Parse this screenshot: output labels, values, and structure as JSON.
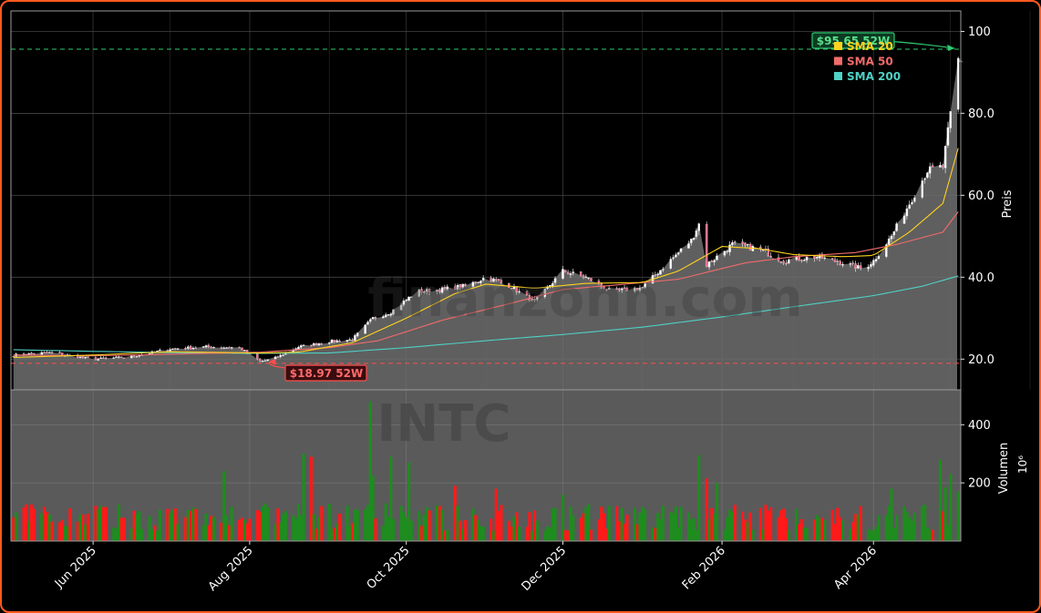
{
  "chart_data": {
    "type": "candlestick",
    "watermark_text": "INTC",
    "watermark_site": "finanzonn.com",
    "x_ticks": [
      "Jun 2025",
      "Aug 2025",
      "Oct 2025",
      "Dec 2025",
      "Feb 2026",
      "Apr 2026"
    ],
    "x_range": [
      "2025-04-30",
      "2026-05-05"
    ],
    "price_axis": {
      "label": "Preis",
      "ylim": [
        12.5,
        105.0
      ],
      "ticks": [
        20,
        40,
        60,
        80,
        100
      ],
      "tick_labels": [
        "20.0",
        "40.0",
        "60.0",
        "80.0",
        "100"
      ]
    },
    "volume_axis": {
      "label": "Volumen",
      "unit": "10⁶",
      "ylim": [
        0,
        520
      ],
      "ticks": [
        200,
        400
      ],
      "tick_labels": [
        "200",
        "400"
      ]
    },
    "grid": true,
    "legend": {
      "position": "top-right",
      "entries": [
        {
          "name": "SMA 20",
          "color": "#ffd21f"
        },
        {
          "name": "SMA 50",
          "color": "#f26b6b"
        },
        {
          "name": "SMA 200",
          "color": "#4fd1c5"
        }
      ]
    },
    "annotations": {
      "high": {
        "label": "$95.65 52W",
        "value": 95.65,
        "color": "#2ecc71"
      },
      "low": {
        "label": "$18.97 52W",
        "value": 18.97,
        "color": "#ff4d4d"
      }
    },
    "price_keypoints": [
      [
        "2025-05-01",
        21.0
      ],
      [
        "2025-05-15",
        21.6
      ],
      [
        "2025-06-01",
        20.0
      ],
      [
        "2025-06-15",
        20.5
      ],
      [
        "2025-07-01",
        22.5
      ],
      [
        "2025-07-15",
        23.0
      ],
      [
        "2025-07-28",
        22.8
      ],
      [
        "2025-08-05",
        19.5
      ],
      [
        "2025-08-10",
        20.0
      ],
      [
        "2025-08-20",
        23.0
      ],
      [
        "2025-09-01",
        24.3
      ],
      [
        "2025-09-10",
        24.8
      ],
      [
        "2025-09-18",
        30.0
      ],
      [
        "2025-09-25",
        31.5
      ],
      [
        "2025-10-05",
        36.5
      ],
      [
        "2025-10-15",
        37.0
      ],
      [
        "2025-10-25",
        38.0
      ],
      [
        "2025-11-01",
        40.0
      ],
      [
        "2025-11-10",
        38.0
      ],
      [
        "2025-11-20",
        34.0
      ],
      [
        "2025-12-01",
        41.5
      ],
      [
        "2025-12-10",
        40.0
      ],
      [
        "2025-12-20",
        36.5
      ],
      [
        "2026-01-01",
        37.5
      ],
      [
        "2026-01-10",
        43.0
      ],
      [
        "2026-01-20",
        49.0
      ],
      [
        "2026-01-23",
        53.0
      ],
      [
        "2026-01-26",
        43.0
      ],
      [
        "2026-02-05",
        48.0
      ],
      [
        "2026-02-15",
        47.0
      ],
      [
        "2026-02-25",
        44.0
      ],
      [
        "2026-03-10",
        45.0
      ],
      [
        "2026-03-20",
        43.5
      ],
      [
        "2026-03-28",
        42.0
      ],
      [
        "2026-04-01",
        44.0
      ],
      [
        "2026-04-08",
        50.0
      ],
      [
        "2026-04-15",
        58.0
      ],
      [
        "2026-04-22",
        66.0
      ],
      [
        "2026-04-28",
        67.0
      ],
      [
        "2026-05-02",
        84.0
      ],
      [
        "2026-05-04",
        93.0
      ]
    ],
    "sma20_keypoints": [
      [
        "2025-05-01",
        20.4
      ],
      [
        "2025-06-01",
        21.0
      ],
      [
        "2025-07-01",
        21.8
      ],
      [
        "2025-08-05",
        21.5
      ],
      [
        "2025-08-20",
        21.7
      ],
      [
        "2025-09-10",
        24.0
      ],
      [
        "2025-10-01",
        30.0
      ],
      [
        "2025-10-20",
        36.0
      ],
      [
        "2025-11-01",
        38.3
      ],
      [
        "2025-11-20",
        37.3
      ],
      [
        "2025-12-10",
        38.5
      ],
      [
        "2026-01-01",
        38.7
      ],
      [
        "2026-01-15",
        41.5
      ],
      [
        "2026-02-01",
        47.5
      ],
      [
        "2026-02-15",
        47.0
      ],
      [
        "2026-03-01",
        45.5
      ],
      [
        "2026-03-20",
        45.0
      ],
      [
        "2026-04-01",
        45.3
      ],
      [
        "2026-04-15",
        51.0
      ],
      [
        "2026-04-28",
        58.0
      ],
      [
        "2026-05-04",
        71.5
      ]
    ],
    "sma50_keypoints": [
      [
        "2025-05-01",
        21.0
      ],
      [
        "2025-06-01",
        20.8
      ],
      [
        "2025-07-01",
        21.2
      ],
      [
        "2025-08-05",
        21.7
      ],
      [
        "2025-09-01",
        22.8
      ],
      [
        "2025-09-20",
        24.5
      ],
      [
        "2025-10-15",
        29.5
      ],
      [
        "2025-11-10",
        33.5
      ],
      [
        "2025-12-01",
        37.0
      ],
      [
        "2025-12-20",
        38.0
      ],
      [
        "2026-01-15",
        39.5
      ],
      [
        "2026-02-10",
        43.5
      ],
      [
        "2026-03-01",
        45.0
      ],
      [
        "2026-03-25",
        46.0
      ],
      [
        "2026-04-10",
        48.0
      ],
      [
        "2026-04-28",
        51.0
      ],
      [
        "2026-05-04",
        56.0
      ]
    ],
    "sma200_keypoints": [
      [
        "2025-05-01",
        22.3
      ],
      [
        "2025-06-01",
        21.9
      ],
      [
        "2025-07-01",
        21.6
      ],
      [
        "2025-08-01",
        21.4
      ],
      [
        "2025-09-01",
        21.5
      ],
      [
        "2025-10-01",
        22.8
      ],
      [
        "2025-11-01",
        24.5
      ],
      [
        "2025-12-01",
        26.0
      ],
      [
        "2026-01-01",
        27.8
      ],
      [
        "2026-02-01",
        30.3
      ],
      [
        "2026-03-01",
        32.8
      ],
      [
        "2026-04-01",
        35.5
      ],
      [
        "2026-04-20",
        37.8
      ],
      [
        "2026-05-04",
        40.3
      ]
    ],
    "volume_spikes": [
      [
        "2025-07-22",
        240
      ],
      [
        "2025-08-22",
        300
      ],
      [
        "2025-08-25",
        290
      ],
      [
        "2025-09-17",
        480
      ],
      [
        "2025-09-18",
        225
      ],
      [
        "2025-09-25",
        290
      ],
      [
        "2025-10-02",
        270
      ],
      [
        "2025-10-20",
        190
      ],
      [
        "2025-11-01",
        240
      ],
      [
        "2025-11-05",
        180
      ],
      [
        "2025-12-01",
        160
      ],
      [
        "2026-01-23",
        295
      ],
      [
        "2026-01-26",
        215
      ],
      [
        "2026-01-30",
        200
      ],
      [
        "2026-04-08",
        180
      ],
      [
        "2026-04-27",
        280
      ],
      [
        "2026-04-29",
        185
      ],
      [
        "2026-05-01",
        230
      ],
      [
        "2026-05-04",
        170
      ]
    ]
  }
}
